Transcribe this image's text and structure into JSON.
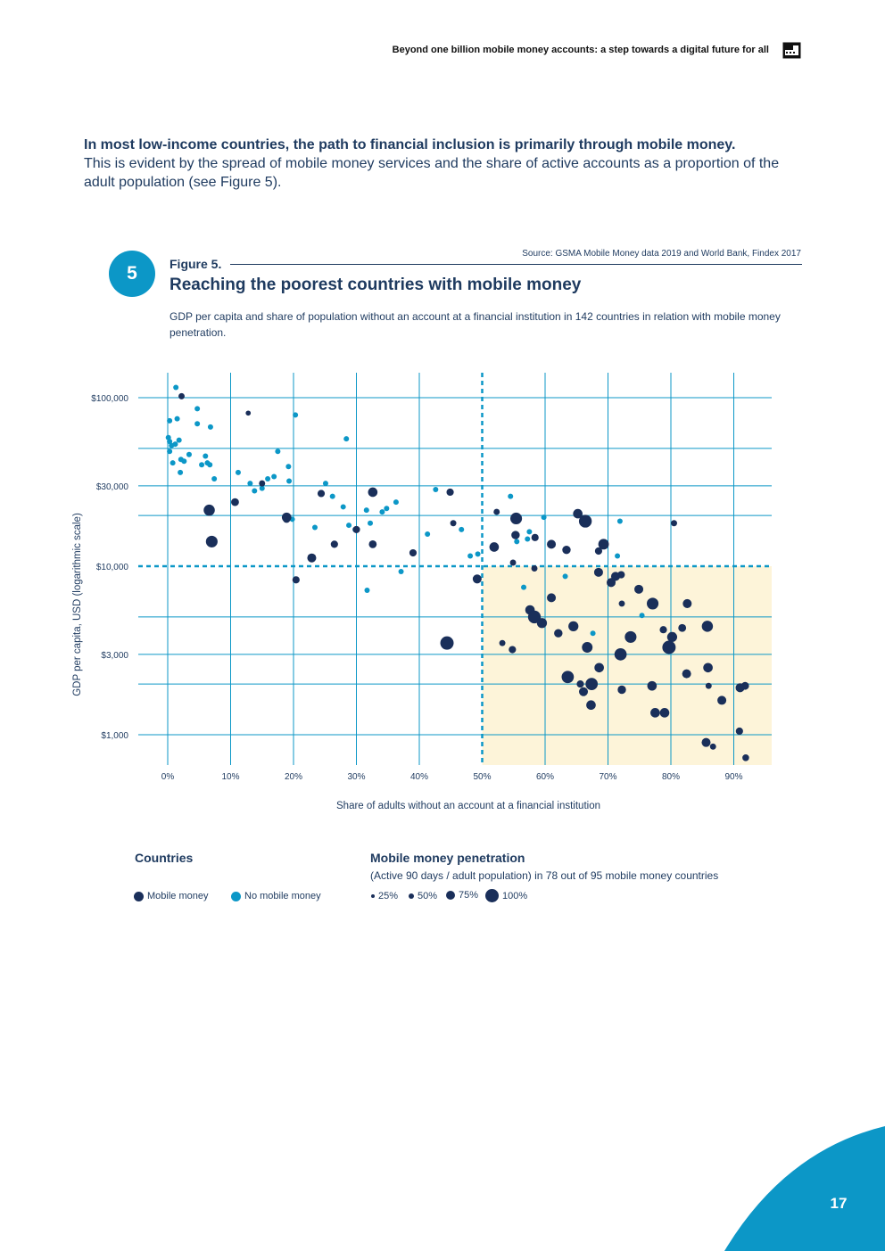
{
  "header": {
    "title": "Beyond one billion mobile money accounts: a step towards a digital future for all",
    "icon": "book-icon"
  },
  "lead": {
    "bold": "In most low-income countries, the path to financial inclusion is primarily through mobile money.",
    "body": "This is evident by the spread of mobile money services and the share of active accounts as a proportion of the adult population (see Figure 5)."
  },
  "figure": {
    "number": "5",
    "label": "Figure 5.",
    "source": "Source: GSMA Mobile Money data 2019 and World Bank, Findex 2017",
    "title": "Reaching the poorest countries with mobile money",
    "subtitle": "GDP per capita and share of population without an account at a financial institution in 142 countries in relation with mobile money penetration."
  },
  "colors": {
    "mobile_money": "#1a2f5a",
    "no_mobile_money": "#0c97c7",
    "highlight": "#fdf4d9",
    "grid": "#0c97c7",
    "brand": "#0c97c7"
  },
  "chart_data": {
    "type": "scatter",
    "title": "Reaching the poorest countries with mobile money",
    "xlabel": "Share of adults without an account at a financial institution",
    "ylabel": "GDP per capita, USD (logarithmic scale)",
    "xlim": [
      -4,
      96
    ],
    "ylim": [
      730,
      115000
    ],
    "y_scale": "log",
    "x_ticks": [
      0,
      10,
      20,
      30,
      40,
      50,
      60,
      70,
      80,
      90
    ],
    "x_tick_labels": [
      "0%",
      "10%",
      "20%",
      "30%",
      "40%",
      "50%",
      "60%",
      "70%",
      "80%",
      "90%"
    ],
    "y_ticks": [
      1000,
      3000,
      10000,
      30000,
      100000
    ],
    "y_tick_labels": [
      "$1,000",
      "$3,000",
      "$10,000",
      "$30,000",
      "$100,000"
    ],
    "threshold_x": 50,
    "threshold_y": 10000,
    "highlight_region": "x > 50%, GDP per capita < $10,000",
    "series": [
      {
        "name": "No mobile money",
        "points": [
          [
            1.3,
            115000
          ],
          [
            4.7,
            86000
          ],
          [
            0.3,
            73000
          ],
          [
            1.5,
            75000
          ],
          [
            4.7,
            70000
          ],
          [
            6.8,
            67000
          ],
          [
            20.3,
            79000
          ],
          [
            1.8,
            56000
          ],
          [
            0.1,
            58000
          ],
          [
            0.3,
            55000
          ],
          [
            1.2,
            53000
          ],
          [
            0.6,
            52000
          ],
          [
            28.4,
            57000
          ],
          [
            0.3,
            48000
          ],
          [
            17.5,
            48000
          ],
          [
            3.4,
            46000
          ],
          [
            6.0,
            45000
          ],
          [
            2.1,
            43000
          ],
          [
            2.6,
            42000
          ],
          [
            0.8,
            41000
          ],
          [
            6.3,
            41000
          ],
          [
            5.4,
            40000
          ],
          [
            6.7,
            40000
          ],
          [
            19.2,
            39000
          ],
          [
            2.0,
            36000
          ],
          [
            11.2,
            36000
          ],
          [
            7.4,
            33000
          ],
          [
            16.9,
            34000
          ],
          [
            15.9,
            33000
          ],
          [
            19.3,
            32000
          ],
          [
            13.1,
            31000
          ],
          [
            25.1,
            31000
          ],
          [
            15.0,
            29000
          ],
          [
            13.8,
            28000
          ],
          [
            42.6,
            28500
          ],
          [
            26.2,
            26000
          ],
          [
            54.5,
            26000
          ],
          [
            36.3,
            24000
          ],
          [
            34.8,
            22000
          ],
          [
            31.6,
            21500
          ],
          [
            27.9,
            22500
          ],
          [
            34.1,
            21000
          ],
          [
            18.9,
            20000
          ],
          [
            59.8,
            19500
          ],
          [
            19.8,
            19000
          ],
          [
            71.9,
            18500
          ],
          [
            32.2,
            18000
          ],
          [
            28.8,
            17500
          ],
          [
            23.4,
            17000
          ],
          [
            29.8,
            16500
          ],
          [
            46.7,
            16500
          ],
          [
            57.5,
            16000
          ],
          [
            41.3,
            15500
          ],
          [
            55.5,
            14000
          ],
          [
            57.2,
            14500
          ],
          [
            48.1,
            11500
          ],
          [
            49.3,
            11800
          ],
          [
            71.5,
            11500
          ],
          [
            37.1,
            9300
          ],
          [
            63.2,
            8700
          ],
          [
            56.6,
            7500
          ],
          [
            31.7,
            7200
          ],
          [
            75.4,
            5100
          ],
          [
            67.6,
            4000
          ]
        ]
      },
      {
        "name": "Mobile money",
        "points": [
          [
            2.2,
            102000,
            30
          ],
          [
            12.8,
            81000,
            20
          ],
          [
            6.6,
            21500,
            75
          ],
          [
            10.7,
            24000,
            45
          ],
          [
            18.9,
            19500,
            60
          ],
          [
            32.6,
            27500,
            60
          ],
          [
            44.9,
            27500,
            40
          ],
          [
            24.4,
            27000,
            40
          ],
          [
            7.0,
            14000,
            80
          ],
          [
            15.0,
            31000,
            30
          ],
          [
            18.9,
            19000,
            40
          ],
          [
            45.4,
            18000,
            30
          ],
          [
            52.3,
            21000,
            30
          ],
          [
            55.4,
            19200,
            80
          ],
          [
            65.2,
            20500,
            60
          ],
          [
            66.4,
            18500,
            90
          ],
          [
            80.5,
            18000,
            30
          ],
          [
            55.3,
            15300,
            50
          ],
          [
            58.4,
            14800,
            40
          ],
          [
            61.0,
            13500,
            55
          ],
          [
            32.6,
            13500,
            45
          ],
          [
            26.5,
            13500,
            40
          ],
          [
            30.0,
            16500,
            40
          ],
          [
            39.0,
            12000,
            40
          ],
          [
            51.9,
            13000,
            60
          ],
          [
            63.4,
            12500,
            50
          ],
          [
            69.3,
            13500,
            70
          ],
          [
            68.5,
            12300,
            40
          ],
          [
            22.9,
            11200,
            55
          ],
          [
            54.9,
            10500,
            30
          ],
          [
            58.3,
            9700,
            30
          ],
          [
            49.2,
            8400,
            55
          ],
          [
            68.5,
            9200,
            55
          ],
          [
            71.2,
            8700,
            55
          ],
          [
            72.1,
            8900,
            40
          ],
          [
            70.5,
            8000,
            55
          ],
          [
            74.9,
            7300,
            55
          ],
          [
            20.4,
            8300,
            40
          ],
          [
            61.0,
            6500,
            55
          ],
          [
            72.2,
            6000,
            30
          ],
          [
            77.1,
            6000,
            80
          ],
          [
            82.6,
            6000,
            55
          ],
          [
            57.6,
            5500,
            60
          ],
          [
            58.3,
            5000,
            90
          ],
          [
            59.5,
            4600,
            65
          ],
          [
            64.5,
            4400,
            65
          ],
          [
            85.8,
            4400,
            75
          ],
          [
            62.1,
            4000,
            50
          ],
          [
            78.8,
            4200,
            40
          ],
          [
            81.8,
            4300,
            45
          ],
          [
            73.6,
            3800,
            80
          ],
          [
            80.2,
            3800,
            65
          ],
          [
            44.4,
            3500,
            95
          ],
          [
            53.2,
            3500,
            30
          ],
          [
            54.8,
            3200,
            40
          ],
          [
            66.7,
            3300,
            70
          ],
          [
            72.0,
            3000,
            85
          ],
          [
            79.7,
            3300,
            95
          ],
          [
            68.6,
            2500,
            60
          ],
          [
            85.9,
            2500,
            60
          ],
          [
            63.6,
            2200,
            85
          ],
          [
            65.6,
            2000,
            40
          ],
          [
            67.4,
            2000,
            85
          ],
          [
            82.5,
            2300,
            55
          ],
          [
            66.1,
            1800,
            55
          ],
          [
            72.2,
            1850,
            50
          ],
          [
            77.0,
            1950,
            60
          ],
          [
            86.0,
            1950,
            30
          ],
          [
            91.0,
            1900,
            55
          ],
          [
            91.8,
            1950,
            45
          ],
          [
            88.1,
            1600,
            55
          ],
          [
            67.3,
            1500,
            60
          ],
          [
            77.5,
            1350,
            60
          ],
          [
            79.0,
            1350,
            60
          ],
          [
            90.9,
            1050,
            40
          ],
          [
            85.6,
            900,
            55
          ],
          [
            86.7,
            850,
            30
          ],
          [
            91.9,
            730,
            35
          ]
        ]
      }
    ],
    "legend": {
      "countries_title": "Countries",
      "countries": [
        "Mobile money",
        "No mobile money"
      ],
      "penetration_title": "Mobile money penetration",
      "penetration_note": "(Active 90 days / adult population)  in 78 out of 95 mobile money countries",
      "sizes": [
        {
          "label": "25%",
          "value": 25
        },
        {
          "label": "50%",
          "value": 50
        },
        {
          "label": "75%",
          "value": 75
        },
        {
          "label": "100%",
          "value": 100
        }
      ]
    }
  },
  "page": {
    "number": "17"
  }
}
